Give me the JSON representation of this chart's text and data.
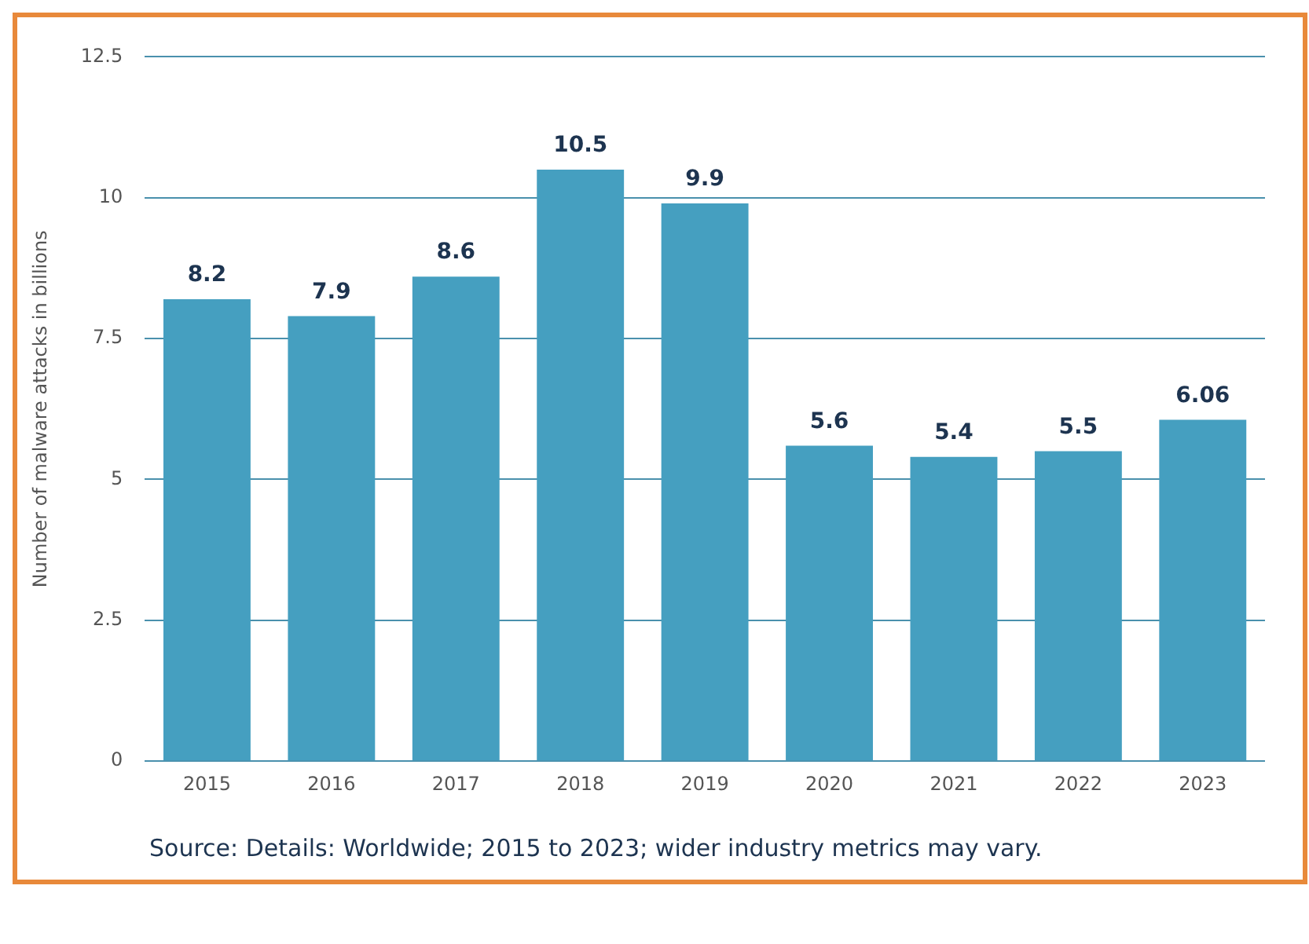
{
  "chart_data": {
    "type": "bar",
    "ylabel": "Number of malware attacks in billions",
    "categories": [
      "2015",
      "2016",
      "2017",
      "2018",
      "2019",
      "2020",
      "2021",
      "2022",
      "2023"
    ],
    "values": [
      8.2,
      7.9,
      8.6,
      10.5,
      9.9,
      5.6,
      5.4,
      5.5,
      6.06
    ],
    "color": "#459fc0",
    "ylim": [
      0,
      12.5
    ],
    "yticks": [
      0,
      2.5,
      5,
      7.5,
      10,
      12.5
    ],
    "grid": "y",
    "data_labels": true,
    "legend": false,
    "annotations": [
      "Source: Details: Worldwide; 2015 to 2023; wider industry metrics may vary."
    ]
  }
}
